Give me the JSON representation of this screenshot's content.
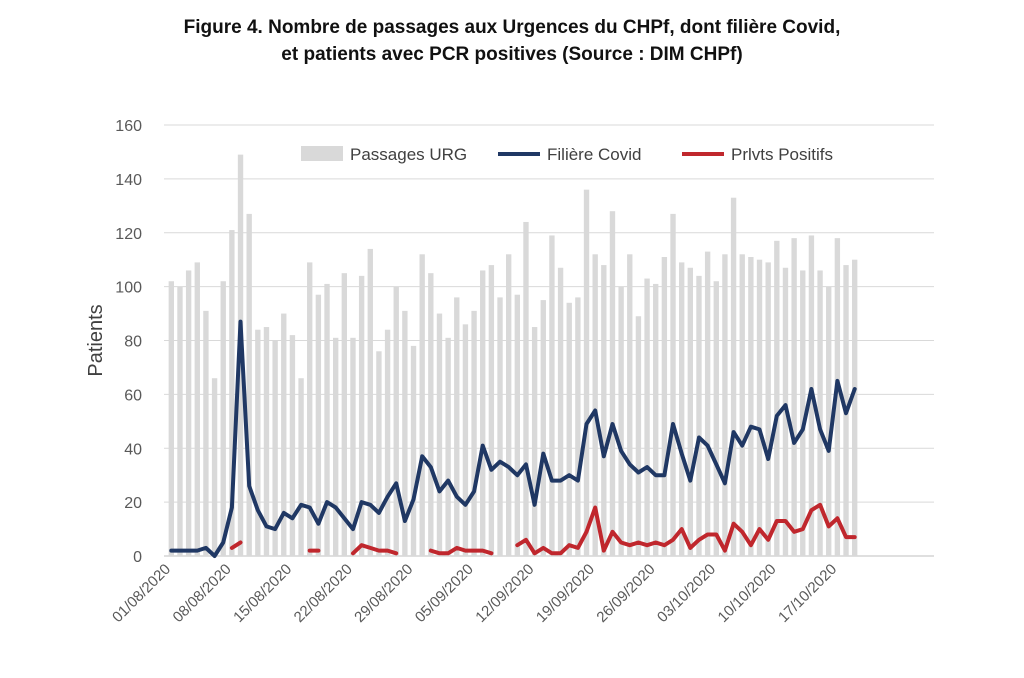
{
  "title": {
    "line1": "Figure 4. Nombre de passages aux Urgences du CHPf, dont filière Covid,",
    "line2": "et patients avec PCR positives (Source : DIM CHPf)"
  },
  "chart_data": {
    "type": "bar",
    "title": "Figure 4. Nombre de passages aux Urgences du CHPf, dont filière Covid, et patients avec PCR positives (Source : DIM CHPf)",
    "xlabel": "",
    "ylabel": "Patients",
    "ylim": [
      0,
      160
    ],
    "yticks": [
      0,
      20,
      40,
      60,
      80,
      100,
      120,
      140,
      160
    ],
    "grid": true,
    "legend_position": "top",
    "x_start": "01/08/2020",
    "x_tick_labels": [
      "01/08/2020",
      "08/08/2020",
      "15/08/2020",
      "22/08/2020",
      "29/08/2020",
      "05/09/2020",
      "12/09/2020",
      "19/09/2020",
      "26/09/2020",
      "03/10/2020",
      "10/10/2020",
      "17/10/2020"
    ],
    "series": [
      {
        "name": "Passages URG",
        "type": "bar",
        "color": "#d9d9d9",
        "values": [
          102,
          100,
          106,
          109,
          91,
          66,
          102,
          121,
          149,
          127,
          84,
          85,
          80,
          90,
          82,
          66,
          109,
          97,
          101,
          81,
          105,
          81,
          104,
          114,
          76,
          84,
          100,
          91,
          78,
          112,
          105,
          90,
          81,
          96,
          86,
          91,
          106,
          108,
          96,
          112,
          97,
          124,
          85,
          95,
          119,
          107,
          94,
          96,
          136,
          112,
          108,
          128,
          100,
          112,
          89,
          103,
          101,
          111,
          127,
          109,
          107,
          104,
          113,
          102,
          112,
          133,
          112,
          111,
          110,
          109,
          117,
          107,
          118,
          106,
          119,
          106,
          100,
          118,
          108,
          110
        ]
      },
      {
        "name": "Filière Covid",
        "type": "line",
        "color": "#203864",
        "values": [
          2,
          2,
          2,
          2,
          3,
          0,
          5,
          18,
          87,
          26,
          17,
          11,
          10,
          16,
          14,
          19,
          18,
          12,
          20,
          18,
          14,
          10,
          20,
          19,
          16,
          22,
          27,
          13,
          21,
          37,
          33,
          24,
          28,
          22,
          19,
          24,
          41,
          32,
          35,
          33,
          30,
          34,
          19,
          38,
          28,
          28,
          30,
          28,
          49,
          54,
          37,
          49,
          39,
          34,
          31,
          33,
          30,
          30,
          49,
          38,
          28,
          44,
          41,
          34,
          27,
          46,
          41,
          48,
          47,
          36,
          52,
          56,
          42,
          47,
          62,
          47,
          39,
          65,
          53,
          62
        ]
      },
      {
        "name": "Prlvts Positifs",
        "type": "line",
        "color": "#c0272d",
        "values": [
          null,
          null,
          null,
          null,
          null,
          null,
          null,
          3,
          5,
          null,
          null,
          null,
          null,
          null,
          null,
          null,
          2,
          2,
          null,
          null,
          null,
          1,
          4,
          3,
          2,
          2,
          1,
          null,
          null,
          null,
          2,
          1,
          1,
          3,
          2,
          2,
          2,
          1,
          null,
          null,
          4,
          6,
          1,
          3,
          1,
          1,
          4,
          3,
          9,
          18,
          2,
          9,
          5,
          4,
          5,
          4,
          5,
          4,
          6,
          10,
          3,
          6,
          8,
          8,
          2,
          12,
          9,
          4,
          10,
          6,
          13,
          13,
          9,
          10,
          17,
          19,
          11,
          14,
          7,
          7
        ]
      }
    ]
  }
}
